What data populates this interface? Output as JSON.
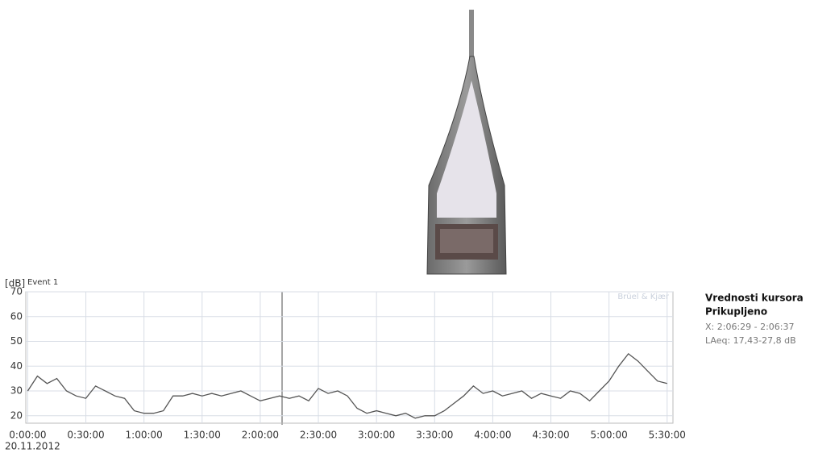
{
  "chart_data": {
    "type": "line",
    "title": "Event 1",
    "y_label": "[dB]",
    "brand": "Brüel & Kjær",
    "date": "20.11.2012",
    "color": "#555555",
    "grid": true,
    "ylim": [
      17,
      70
    ],
    "yticks": [
      20,
      30,
      40,
      50,
      60,
      70
    ],
    "xlim": [
      -1,
      333
    ],
    "xticks": [
      {
        "value": 0,
        "label": "0:00:00"
      },
      {
        "value": 30,
        "label": "0:30:00"
      },
      {
        "value": 60,
        "label": "1:00:00"
      },
      {
        "value": 90,
        "label": "1:30:00"
      },
      {
        "value": 120,
        "label": "2:00:00"
      },
      {
        "value": 150,
        "label": "2:30:00"
      },
      {
        "value": 180,
        "label": "3:00:00"
      },
      {
        "value": 210,
        "label": "3:30:00"
      },
      {
        "value": 240,
        "label": "4:00:00"
      },
      {
        "value": 270,
        "label": "4:30:00"
      },
      {
        "value": 300,
        "label": "5:00:00"
      },
      {
        "value": 330,
        "label": "5:30:00"
      }
    ],
    "x": [
      0,
      5,
      10,
      15,
      20,
      25,
      30,
      35,
      40,
      45,
      50,
      55,
      60,
      65,
      70,
      75,
      80,
      85,
      90,
      95,
      100,
      105,
      110,
      115,
      120,
      125,
      130,
      135,
      140,
      145,
      150,
      155,
      160,
      165,
      170,
      175,
      180,
      185,
      190,
      195,
      200,
      205,
      210,
      215,
      220,
      225,
      230,
      235,
      240,
      245,
      250,
      255,
      260,
      265,
      270,
      275,
      280,
      285,
      290,
      295,
      300,
      305,
      310,
      315,
      320,
      325,
      330
    ],
    "values": [
      30,
      36,
      33,
      35,
      30,
      28,
      27,
      32,
      30,
      28,
      27,
      22,
      21,
      21,
      22,
      28,
      28,
      29,
      28,
      29,
      28,
      29,
      30,
      28,
      26,
      27,
      28,
      27,
      28,
      26,
      31,
      29,
      30,
      28,
      23,
      21,
      22,
      21,
      20,
      21,
      19,
      20,
      20,
      22,
      25,
      28,
      32,
      29,
      30,
      28,
      29,
      30,
      27,
      29,
      28,
      27,
      30,
      29,
      26,
      30,
      34,
      40,
      45,
      42,
      38,
      34,
      33
    ]
  },
  "side_panel": {
    "title": "Vrednosti kursora",
    "subtitle": "Prikupljeno",
    "x_range": "X: 2:06:29 - 2:06:37",
    "laeq": "LAeq: 17,43-27,8 dB"
  }
}
